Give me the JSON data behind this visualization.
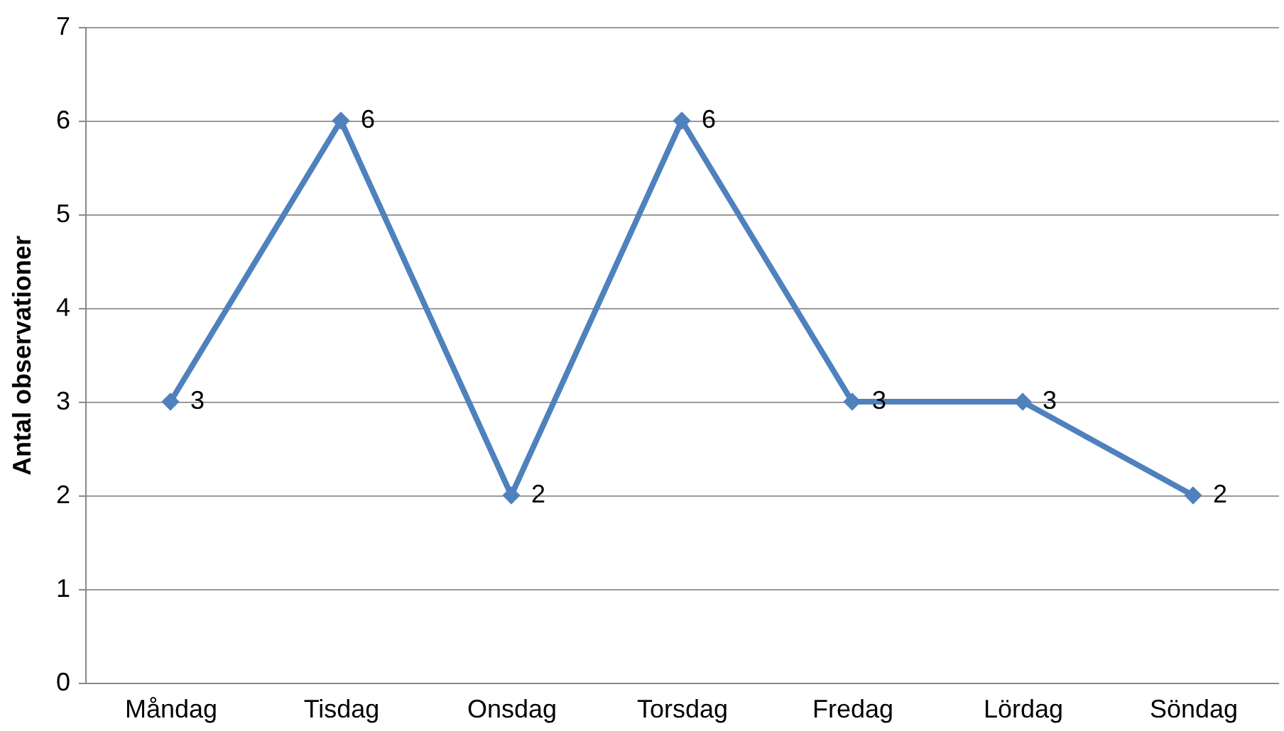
{
  "chart_data": {
    "type": "line",
    "ylabel": "Antal observationer",
    "categories": [
      "Måndag",
      "Tisdag",
      "Onsdag",
      "Torsdag",
      "Fredag",
      "Lördag",
      "Söndag"
    ],
    "series": [
      {
        "color": "#4f81bd",
        "values": [
          3,
          6,
          2,
          6,
          3,
          3,
          2
        ]
      }
    ],
    "ylim": [
      0,
      7
    ],
    "yticks": [
      0,
      1,
      2,
      3,
      4,
      5,
      6,
      7
    ],
    "grid": "y",
    "marker": "diamond",
    "line_style": "solid",
    "data_labels": true,
    "legend": false
  }
}
